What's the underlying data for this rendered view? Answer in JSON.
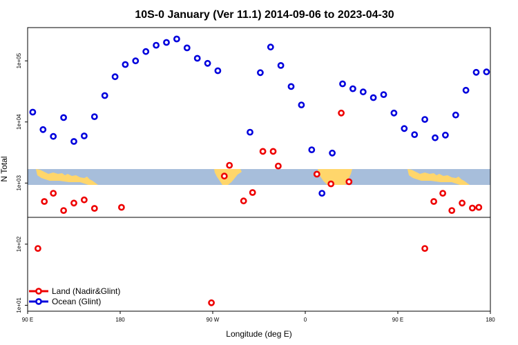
{
  "chart_data": {
    "type": "scatter",
    "title": "10S-0 January (Ver 11.1)   2014-09-06 to 2023-04-30",
    "xlabel": "Longitude (deg E)",
    "ylabel": "N Total",
    "y_scale": "log",
    "xlim": [
      90,
      450
    ],
    "ylim": [
      8,
      350000
    ],
    "x_ticks": [
      {
        "value": 90,
        "label": "90 E"
      },
      {
        "value": 162,
        "label": "180"
      },
      {
        "value": 234,
        "label": "90 W"
      },
      {
        "value": 306,
        "label": "0"
      },
      {
        "value": 378,
        "label": "90 E"
      },
      {
        "value": 450,
        "label": "180"
      }
    ],
    "y_ticks": [
      {
        "value": 10,
        "label": "1e+01"
      },
      {
        "value": 100,
        "label": "1e+02"
      },
      {
        "value": 1000,
        "label": "1e+03"
      },
      {
        "value": 10000,
        "label": "1e+04"
      },
      {
        "value": 100000,
        "label": "1e+05"
      }
    ],
    "colors": {
      "land": "#ee0000",
      "ocean": "#0000dd",
      "map_water": "#a7bedb",
      "map_land": "#ffd66b"
    },
    "legend_position": "bottom-left",
    "series": [
      {
        "name": "Land (Nadir&Glint)",
        "color": "#ee0000",
        "x": [
          98,
          103,
          110,
          118,
          126,
          134,
          142,
          163,
          233,
          243,
          247,
          258,
          265,
          273,
          281,
          285,
          315,
          326,
          334,
          340,
          399,
          406,
          413,
          420,
          428,
          436,
          441
        ],
        "y": [
          85,
          500,
          680,
          355,
          470,
          530,
          385,
          400,
          11,
          1300,
          1950,
          510,
          700,
          3300,
          3300,
          1900,
          1400,
          970,
          14000,
          1050,
          85,
          500,
          680,
          355,
          470,
          390,
          400
        ]
      },
      {
        "name": "Ocean (Glint)",
        "color": "#0000dd",
        "x": [
          94,
          102,
          110,
          118,
          126,
          134,
          142,
          150,
          158,
          166,
          174,
          182,
          190,
          198,
          206,
          214,
          222,
          230,
          238,
          263,
          271,
          279,
          287,
          295,
          303,
          311,
          319,
          327,
          335,
          343,
          351,
          359,
          367,
          375,
          383,
          391,
          399,
          407,
          415,
          423,
          431,
          439,
          447
        ],
        "y": [
          14500,
          7500,
          5800,
          11800,
          4800,
          5900,
          12200,
          27000,
          55000,
          87000,
          100000,
          142000,
          180000,
          200000,
          228000,
          163000,
          110000,
          91000,
          69000,
          6800,
          64000,
          168000,
          84000,
          38000,
          19000,
          3500,
          680,
          3100,
          42000,
          35000,
          31000,
          25000,
          28000,
          14000,
          7800,
          6200,
          11000,
          5500,
          6100,
          13000,
          33000,
          65000,
          66000
        ]
      }
    ]
  }
}
